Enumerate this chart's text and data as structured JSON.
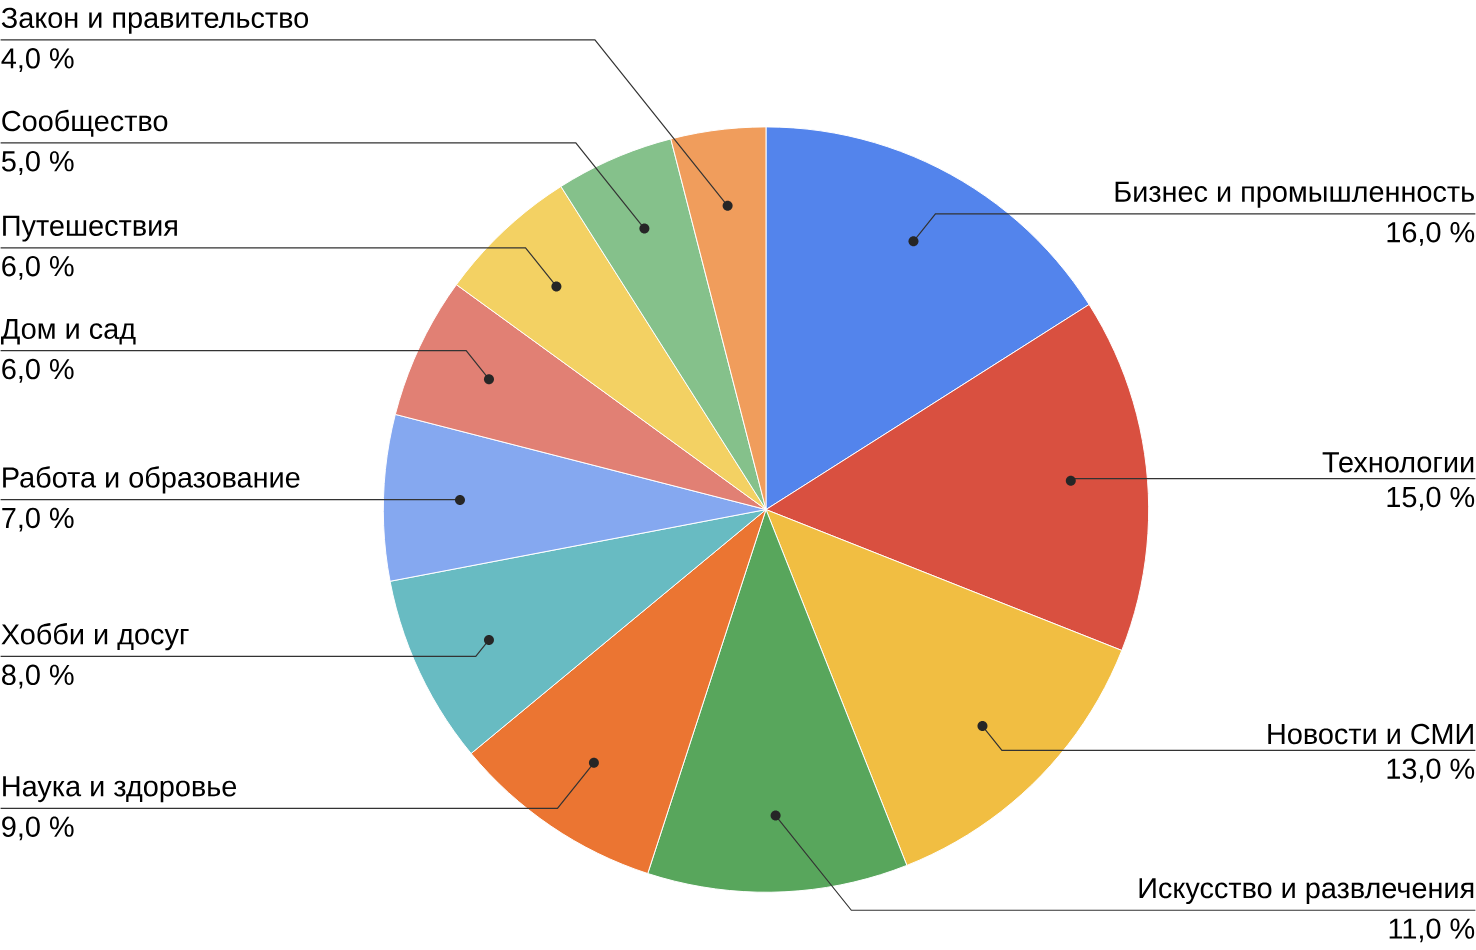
{
  "chart_data": {
    "type": "pie",
    "categories": [
      "Бизнес и промышленность",
      "Технологии",
      "Новости и СМИ",
      "Искусство и развлечения",
      "Наука и здоровье",
      "Хобби и досуг",
      "Работа и образование",
      "Дом и сад",
      "Путешествия",
      "Сообщество",
      "Закон и правительство"
    ],
    "values": [
      16,
      15,
      13,
      11,
      9,
      8,
      7,
      6,
      6,
      5,
      4
    ],
    "value_labels": [
      "16,0 %",
      "15,0 %",
      "13,0 %",
      "11,0 %",
      "9,0 %",
      "8,0 %",
      "7,0 %",
      "6,0 %",
      "6,0 %",
      "5,0 %",
      "4,0 %"
    ],
    "colors": [
      "#5384ec",
      "#d95040",
      "#f1be42",
      "#58a65c",
      "#eb7532",
      "#68bbc2",
      "#85a8f0",
      "#e18074",
      "#f3d163",
      "#85c18b",
      "#f09d5c"
    ]
  }
}
